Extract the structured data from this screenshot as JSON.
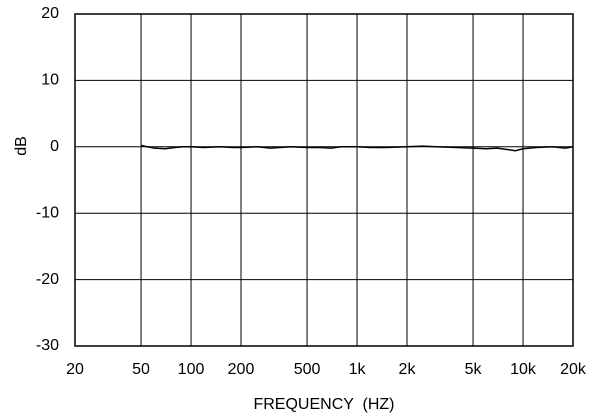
{
  "chart_data": {
    "type": "line",
    "xlabel": "FREQUENCY  (HZ)",
    "ylabel": "dB",
    "xscale": "log",
    "grid": true,
    "xlim": [
      20,
      20000
    ],
    "ylim": [
      -30,
      20
    ],
    "xticks": [
      20,
      50,
      100,
      200,
      500,
      {
        "value": 1000,
        "label": "1k"
      },
      {
        "value": 2000,
        "label": "2k"
      },
      {
        "value": 5000,
        "label": "5k"
      },
      {
        "value": 10000,
        "label": "10k"
      },
      {
        "value": 20000,
        "label": "20k"
      }
    ],
    "yticks": [
      20,
      10,
      0,
      -10,
      -20,
      -30
    ],
    "x": [
      50,
      60,
      70,
      80,
      90,
      100,
      120,
      150,
      180,
      200,
      250,
      300,
      400,
      500,
      600,
      700,
      800,
      1000,
      1200,
      1500,
      2000,
      2500,
      3000,
      4000,
      5000,
      6000,
      7000,
      8000,
      9000,
      10000,
      12000,
      15000,
      18000,
      20000
    ],
    "series": [
      {
        "color": "#000000",
        "values": [
          0.2,
          -0.2,
          -0.3,
          -0.1,
          0,
          0,
          -0.1,
          0,
          -0.1,
          -0.1,
          0,
          -0.2,
          0,
          -0.1,
          -0.1,
          -0.2,
          0,
          0,
          -0.1,
          -0.1,
          0,
          0.1,
          0,
          -0.1,
          -0.2,
          -0.3,
          -0.2,
          -0.4,
          -0.6,
          -0.3,
          -0.1,
          0,
          -0.2,
          0
        ]
      }
    ]
  }
}
